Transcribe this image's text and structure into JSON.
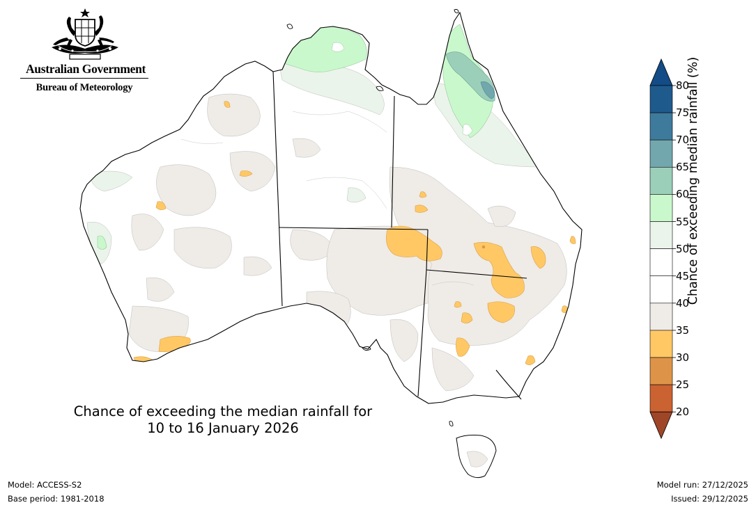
{
  "header": {
    "government": "Australian Government",
    "agency": "Bureau of Meteorology"
  },
  "map": {
    "title_line1": "Chance of exceeding the median rainfall for",
    "title_line2": "10 to 16 January 2026"
  },
  "legend": {
    "title": "Chance of exceeding median rainfall (%)",
    "ticks": [
      "80",
      "75",
      "70",
      "65",
      "60",
      "55",
      "50",
      "45",
      "40",
      "35",
      "30",
      "25",
      "20"
    ],
    "bins": [
      {
        "range": "75-80",
        "color": "#1f5a8c"
      },
      {
        "range": "70-75",
        "color": "#3e7a9c"
      },
      {
        "range": "65-70",
        "color": "#73a7ae"
      },
      {
        "range": "60-65",
        "color": "#9ccfb9"
      },
      {
        "range": "55-60",
        "color": "#c9f8cc"
      },
      {
        "range": "50-55",
        "color": "#eaf4ea"
      },
      {
        "range": "45-50",
        "color": "#ffffff"
      },
      {
        "range": "40-45",
        "color": "#ffffff"
      },
      {
        "range": "35-40",
        "color": "#efebe6"
      },
      {
        "range": "30-35",
        "color": "#ffc865"
      },
      {
        "range": "25-30",
        "color": "#de9448"
      },
      {
        "range": "20-25",
        "color": "#cb6231"
      }
    ],
    "low_arrow_color": "#a04628",
    "high_arrow_color": "#134c86"
  },
  "footer": {
    "model": "Model: ACCESS-S2",
    "base_period": "Base period: 1981-2018",
    "model_run": "Model run: 27/12/2025",
    "issued": "Issued: 29/12/2025"
  }
}
